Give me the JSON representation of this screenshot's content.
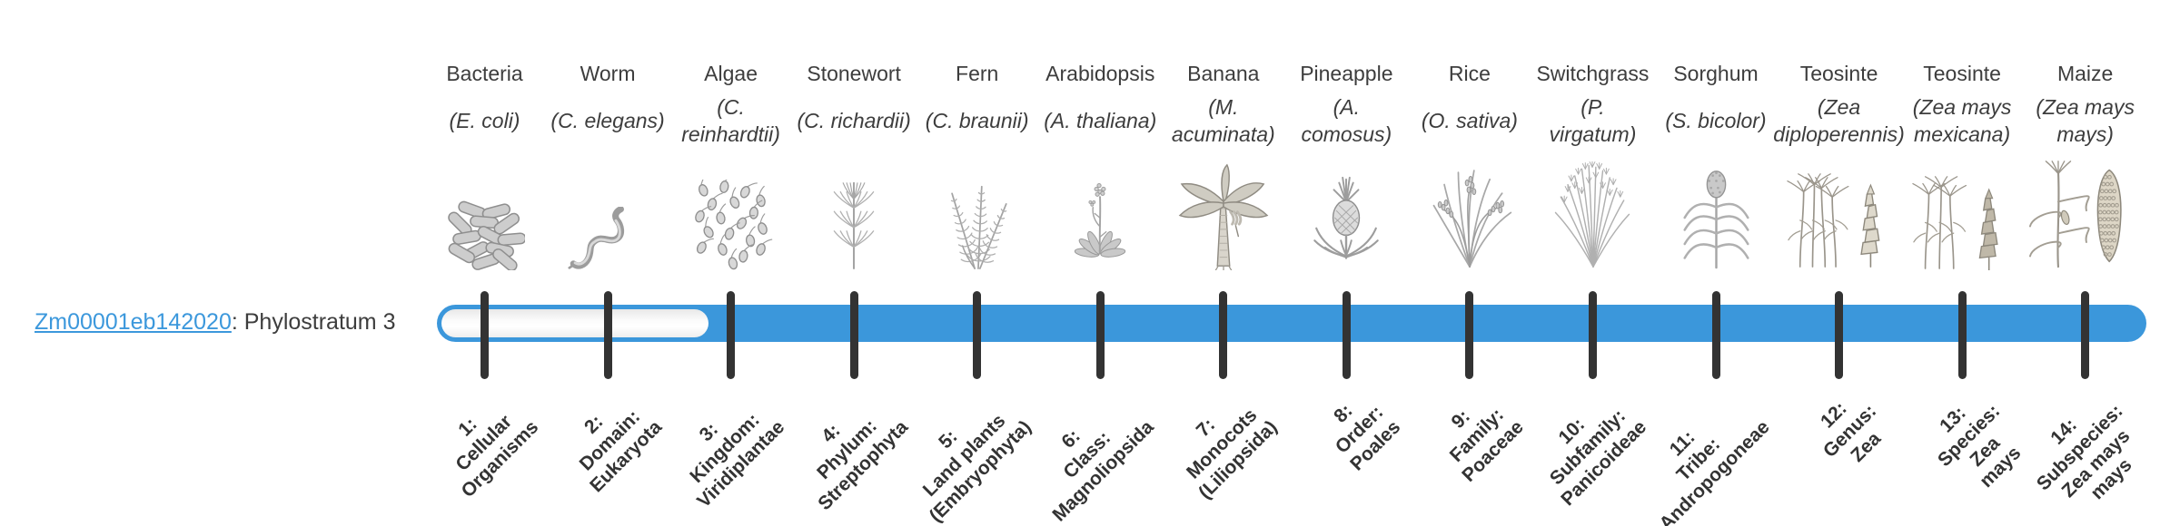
{
  "gene": {
    "id": "Zm00001eb142020",
    "suffix": ": Phylostratum 3"
  },
  "timeline": {
    "gene_stratum": 3,
    "total_strata": 14
  },
  "colors": {
    "bar_blue": "#3b97db",
    "link_blue": "#3c98dc",
    "tick": "#333333"
  },
  "organisms": [
    {
      "common": "Bacteria",
      "scientific": "(E. coli)",
      "icon": "bacteria-icon",
      "stratum_label": "1:\nCellular\nOrganisms"
    },
    {
      "common": "Worm",
      "scientific": "(C. elegans)",
      "icon": "worm-icon",
      "stratum_label": "2:\nDomain:\nEukaryota"
    },
    {
      "common": "Algae",
      "scientific": "(C.\nreinhardtii)",
      "icon": "algae-icon",
      "stratum_label": "3:\nKingdom:\nViridiplantae"
    },
    {
      "common": "Stonewort",
      "scientific": "(C. richardii)",
      "icon": "stonewort-icon",
      "stratum_label": "4:\nPhylum:\nStreptophyta"
    },
    {
      "common": "Fern",
      "scientific": "(C. braunii)",
      "icon": "fern-icon",
      "stratum_label": "5:\nLand plants\n(Embryophyta)"
    },
    {
      "common": "Arabidopsis",
      "scientific": "(A. thaliana)",
      "icon": "arabidopsis-icon",
      "stratum_label": "6:\nClass:\nMagnoliopsida"
    },
    {
      "common": "Banana",
      "scientific": "(M.\nacuminata)",
      "icon": "banana-icon",
      "stratum_label": "7:\nMonocots\n(Liliopsida)"
    },
    {
      "common": "Pineapple",
      "scientific": "(A.\ncomosus)",
      "icon": "pineapple-icon",
      "stratum_label": "8:\nOrder:\nPoales"
    },
    {
      "common": "Rice",
      "scientific": "(O. sativa)",
      "icon": "rice-icon",
      "stratum_label": "9:\nFamily:\nPoaceae"
    },
    {
      "common": "Switchgrass",
      "scientific": "(P.\nvirgatum)",
      "icon": "switchgrass-icon",
      "stratum_label": "10:\nSubfamily:\nPanicoideae"
    },
    {
      "common": "Sorghum",
      "scientific": "(S. bicolor)",
      "icon": "sorghum-icon",
      "stratum_label": "11:\nTribe:\nAndropogoneae"
    },
    {
      "common": "Teosinte",
      "scientific": "(Zea\ndiploperennis)",
      "icon": "teosinte-diploperennis-icon",
      "stratum_label": "12:\nGenus:\nZea"
    },
    {
      "common": "Teosinte",
      "scientific": "(Zea mays\nmexicana)",
      "icon": "teosinte-mexicana-icon",
      "stratum_label": "13:\nSpecies:\nZea\nmays"
    },
    {
      "common": "Maize",
      "scientific": "(Zea mays\nmays)",
      "icon": "maize-icon",
      "stratum_label": "14:\nSubspecies:\nZea mays\nmays"
    }
  ]
}
